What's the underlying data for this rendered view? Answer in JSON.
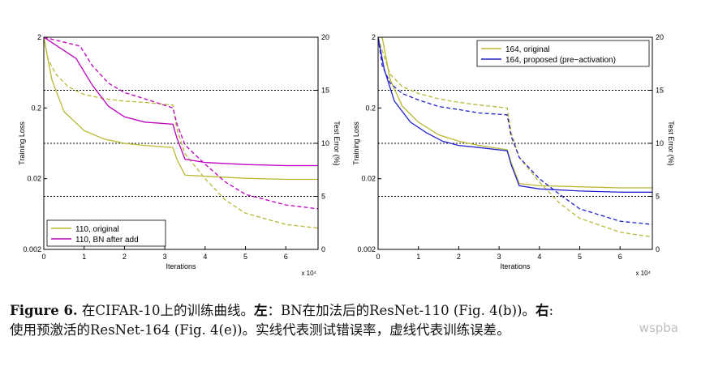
{
  "chart_data": [
    {
      "type": "line",
      "xlabel": "Iterations",
      "ylabel": "Training Loss",
      "y2label": "Test Error (%)",
      "x_multiplier": "x 10⁴",
      "xlim": [
        0,
        6.8
      ],
      "ylim": [
        0.002,
        2
      ],
      "yscale": "log",
      "y2lim": [
        0,
        20
      ],
      "xticks": [
        "0",
        "1",
        "2",
        "3",
        "4",
        "5",
        "6"
      ],
      "yticks": [
        "2",
        "0.2",
        "0.02",
        "0.002"
      ],
      "y2ticks": [
        "20",
        "15",
        "10",
        "5",
        "0"
      ],
      "grid": "dotted horizontal at test error 5, 10, 15",
      "legend_position": "bottom-left",
      "series": [
        {
          "name": "110, original",
          "color": "#b8b833",
          "test_error": [
            [
              0.0,
              20
            ],
            [
              0.2,
              16
            ],
            [
              0.5,
              13.0
            ],
            [
              1.0,
              11.2
            ],
            [
              1.5,
              10.4
            ],
            [
              2.0,
              10.0
            ],
            [
              2.5,
              9.8
            ],
            [
              3.2,
              9.6
            ],
            [
              3.3,
              8.5
            ],
            [
              3.5,
              7.0
            ],
            [
              4.0,
              6.9
            ],
            [
              5.0,
              6.7
            ],
            [
              6.0,
              6.6
            ],
            [
              6.8,
              6.6
            ]
          ],
          "training_loss": [
            [
              0.0,
              2.0
            ],
            [
              0.1,
              1.0
            ],
            [
              0.3,
              0.6
            ],
            [
              0.6,
              0.4
            ],
            [
              1.0,
              0.31
            ],
            [
              1.5,
              0.27
            ],
            [
              2.0,
              0.25
            ],
            [
              2.5,
              0.24
            ],
            [
              3.2,
              0.22
            ],
            [
              3.3,
              0.1
            ],
            [
              3.5,
              0.045
            ],
            [
              4.0,
              0.02
            ],
            [
              4.5,
              0.01
            ],
            [
              5.0,
              0.0065
            ],
            [
              6.0,
              0.0045
            ],
            [
              6.8,
              0.004
            ]
          ]
        },
        {
          "name": "110, BN after add",
          "color": "#c000c0",
          "test_error": [
            [
              0.0,
              20
            ],
            [
              0.8,
              18
            ],
            [
              1.2,
              15.5
            ],
            [
              1.6,
              13.5
            ],
            [
              2.0,
              12.5
            ],
            [
              2.5,
              12.0
            ],
            [
              3.2,
              11.8
            ],
            [
              3.3,
              10.5
            ],
            [
              3.5,
              8.5
            ],
            [
              4.0,
              8.2
            ],
            [
              5.0,
              8.0
            ],
            [
              6.0,
              7.9
            ],
            [
              6.8,
              7.9
            ]
          ],
          "training_loss": [
            [
              0.0,
              2.0
            ],
            [
              0.9,
              1.5
            ],
            [
              1.2,
              0.8
            ],
            [
              1.6,
              0.45
            ],
            [
              2.0,
              0.33
            ],
            [
              2.5,
              0.27
            ],
            [
              3.2,
              0.2
            ],
            [
              3.3,
              0.12
            ],
            [
              3.5,
              0.06
            ],
            [
              4.0,
              0.032
            ],
            [
              4.5,
              0.018
            ],
            [
              5.0,
              0.012
            ],
            [
              6.0,
              0.0085
            ],
            [
              6.8,
              0.0075
            ]
          ]
        }
      ]
    },
    {
      "type": "line",
      "xlabel": "Iterations",
      "ylabel": "Training Loss",
      "y2label": "Test Error (%)",
      "x_multiplier": "x 10⁴",
      "xlim": [
        0,
        6.8
      ],
      "ylim": [
        0.002,
        2
      ],
      "yscale": "log",
      "y2lim": [
        0,
        20
      ],
      "xticks": [
        "0",
        "1",
        "2",
        "3",
        "4",
        "5",
        "6"
      ],
      "yticks": [
        "2",
        "0.2",
        "0.02",
        "0.002"
      ],
      "y2ticks": [
        "20",
        "15",
        "10",
        "5",
        "0"
      ],
      "grid": "dotted horizontal at test error 5, 10, 15",
      "legend_position": "top-right",
      "series": [
        {
          "name": "164, original",
          "color": "#b8b833",
          "test_error": [
            [
              0.0,
              20
            ],
            [
              0.1,
              20
            ],
            [
              0.3,
              16
            ],
            [
              0.6,
              13.5
            ],
            [
              1.0,
              12.0
            ],
            [
              1.5,
              10.8
            ],
            [
              2.0,
              10.2
            ],
            [
              2.5,
              9.8
            ],
            [
              3.2,
              9.4
            ],
            [
              3.3,
              8.2
            ],
            [
              3.5,
              6.2
            ],
            [
              4.0,
              6.0
            ],
            [
              5.0,
              5.9
            ],
            [
              6.0,
              5.8
            ],
            [
              6.8,
              5.8
            ]
          ],
          "training_loss": [
            [
              0.0,
              2.0
            ],
            [
              0.1,
              1.3
            ],
            [
              0.3,
              0.6
            ],
            [
              0.6,
              0.4
            ],
            [
              1.0,
              0.32
            ],
            [
              1.5,
              0.27
            ],
            [
              2.0,
              0.24
            ],
            [
              2.5,
              0.22
            ],
            [
              3.2,
              0.2
            ],
            [
              3.3,
              0.09
            ],
            [
              3.5,
              0.04
            ],
            [
              4.0,
              0.018
            ],
            [
              4.5,
              0.009
            ],
            [
              5.0,
              0.0055
            ],
            [
              6.0,
              0.0035
            ],
            [
              6.8,
              0.003
            ]
          ]
        },
        {
          "name": "164, proposed (pre−activation)",
          "color": "#2222cc",
          "test_error": [
            [
              0.0,
              20
            ],
            [
              0.15,
              17
            ],
            [
              0.4,
              14.0
            ],
            [
              0.8,
              12.0
            ],
            [
              1.2,
              11.0
            ],
            [
              1.6,
              10.2
            ],
            [
              2.0,
              9.8
            ],
            [
              2.5,
              9.6
            ],
            [
              3.2,
              9.3
            ],
            [
              3.3,
              8.0
            ],
            [
              3.5,
              6.0
            ],
            [
              4.0,
              5.7
            ],
            [
              5.0,
              5.5
            ],
            [
              6.0,
              5.4
            ],
            [
              6.8,
              5.4
            ]
          ],
          "training_loss": [
            [
              0.0,
              2.0
            ],
            [
              0.1,
              0.8
            ],
            [
              0.3,
              0.45
            ],
            [
              0.6,
              0.32
            ],
            [
              1.0,
              0.26
            ],
            [
              1.5,
              0.21
            ],
            [
              2.0,
              0.19
            ],
            [
              2.5,
              0.17
            ],
            [
              3.2,
              0.16
            ],
            [
              3.3,
              0.08
            ],
            [
              3.5,
              0.04
            ],
            [
              4.0,
              0.02
            ],
            [
              4.5,
              0.012
            ],
            [
              5.0,
              0.0075
            ],
            [
              6.0,
              0.005
            ],
            [
              6.8,
              0.0045
            ]
          ]
        }
      ]
    }
  ],
  "caption": {
    "label": "Figure 6.",
    "part1": " 在CIFAR-10上的训练曲线。",
    "left_word": "左",
    "part2": "：BN在加法后的ResNet-110 (Fig. 4(b))。",
    "right_word": "右",
    "part3": ":",
    "line2": "使用预激活的ResNet-164 (Fig. 4(e))。实线代表测试错误率，虚线代表训练误差。"
  },
  "watermark": "wspba"
}
